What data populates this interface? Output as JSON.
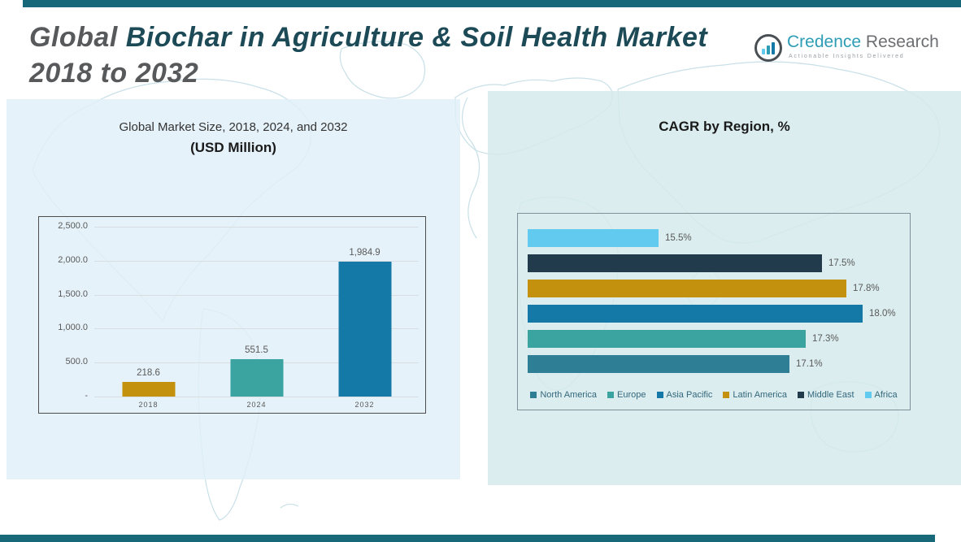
{
  "header": {
    "title_part1": "Global ",
    "title_part2": "Biochar in Agriculture & Soil Health Market",
    "title_part3": "2018 to 2032",
    "logo": {
      "brand_primary": "Credence",
      "brand_secondary": " Research",
      "tagline": "Actionable Insights Delivered"
    }
  },
  "colors": {
    "strip_teal": "#17697a",
    "title_gray": "#58595b",
    "title_teal": "#1d4a57",
    "gold": "#c3910d",
    "teal": "#3ba3a0",
    "blue": "#1579a8",
    "steel": "#2e7f96",
    "navy": "#213b4c",
    "sky": "#62c9ef"
  },
  "chart_data": [
    {
      "type": "bar",
      "title": "Global Market Size, 2018, 2024, and 2032",
      "subtitle": "(USD Million)",
      "categories": [
        "2018",
        "2024",
        "2032"
      ],
      "values": [
        218.6,
        551.5,
        1984.9
      ],
      "value_labels": [
        "218.6",
        "551.5",
        "1,984.9"
      ],
      "bar_colors": [
        "#c3910d",
        "#3ba3a0",
        "#1579a8"
      ],
      "xlabel": "",
      "ylabel": "",
      "ylim": [
        0,
        2500
      ],
      "yticks": [
        "2,500.0",
        "2,000.0",
        "1,500.0",
        "1,000.0",
        "500.0",
        "-"
      ],
      "grid": true,
      "legend_position": "none"
    },
    {
      "type": "bar-horizontal",
      "title": "CAGR by Region, %",
      "bars": [
        {
          "label": "Africa",
          "value": 15.5,
          "display": "15.5%",
          "color": "#62c9ef"
        },
        {
          "label": "Middle East",
          "value": 17.5,
          "display": "17.5%",
          "color": "#213b4c"
        },
        {
          "label": "Latin America",
          "value": 17.8,
          "display": "17.8%",
          "color": "#c3910d"
        },
        {
          "label": "Asia Pacific",
          "value": 18.0,
          "display": "18.0%",
          "color": "#1579a8"
        },
        {
          "label": "Europe",
          "value": 17.3,
          "display": "17.3%",
          "color": "#3ba3a0"
        },
        {
          "label": "North America",
          "value": 17.1,
          "display": "17.1%",
          "color": "#2e7f96"
        }
      ],
      "legend": [
        {
          "label": "North America",
          "color": "#2e7f96"
        },
        {
          "label": "Europe",
          "color": "#3ba3a0"
        },
        {
          "label": "Asia Pacific",
          "color": "#1579a8"
        },
        {
          "label": "Latin America",
          "color": "#c3910d"
        },
        {
          "label": "Middle East",
          "color": "#213b4c"
        },
        {
          "label": "Africa",
          "color": "#62c9ef"
        }
      ],
      "xlim": [
        13.9,
        18.0
      ],
      "grid": false,
      "legend_position": "bottom"
    }
  ]
}
